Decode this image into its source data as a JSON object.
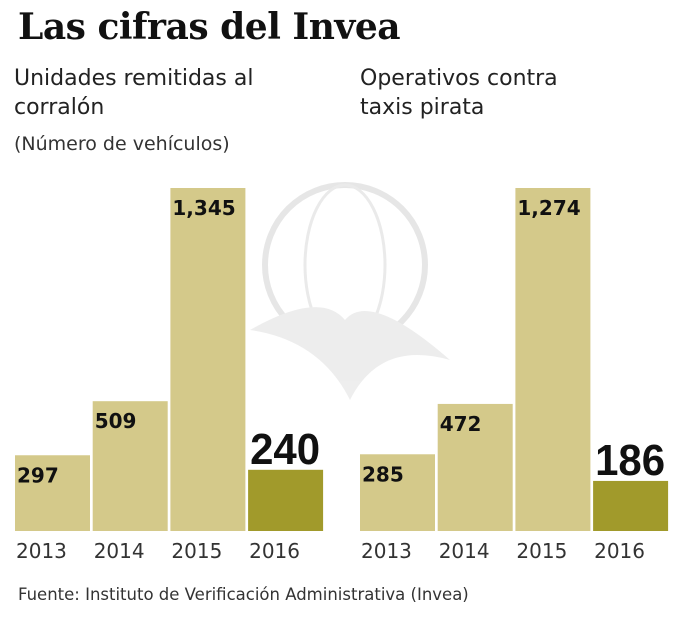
{
  "title": "Las cifras del Invea",
  "source": "Fuente: Instituto de Verificación Administrativa (Invea)",
  "colors": {
    "bar": "#d4c98a",
    "highlight": "#a19a2b",
    "watermark": "#e4e4e4"
  },
  "chart_data": [
    {
      "type": "bar",
      "title": "Unidades remitidas al corralón",
      "subtitle": "(Número de vehículos)",
      "categories": [
        "2013",
        "2014",
        "2015",
        "2016"
      ],
      "values": [
        297,
        509,
        1345,
        240
      ],
      "labels": [
        "297",
        "509",
        "1,345",
        "240"
      ],
      "highlight_category": "2016"
    },
    {
      "type": "bar",
      "title": "Operativos contra taxis pirata",
      "categories": [
        "2013",
        "2014",
        "2015",
        "2016"
      ],
      "values": [
        285,
        472,
        1274,
        186
      ],
      "labels": [
        "285",
        "472",
        "1,274",
        "186"
      ],
      "highlight_category": "2016"
    }
  ]
}
